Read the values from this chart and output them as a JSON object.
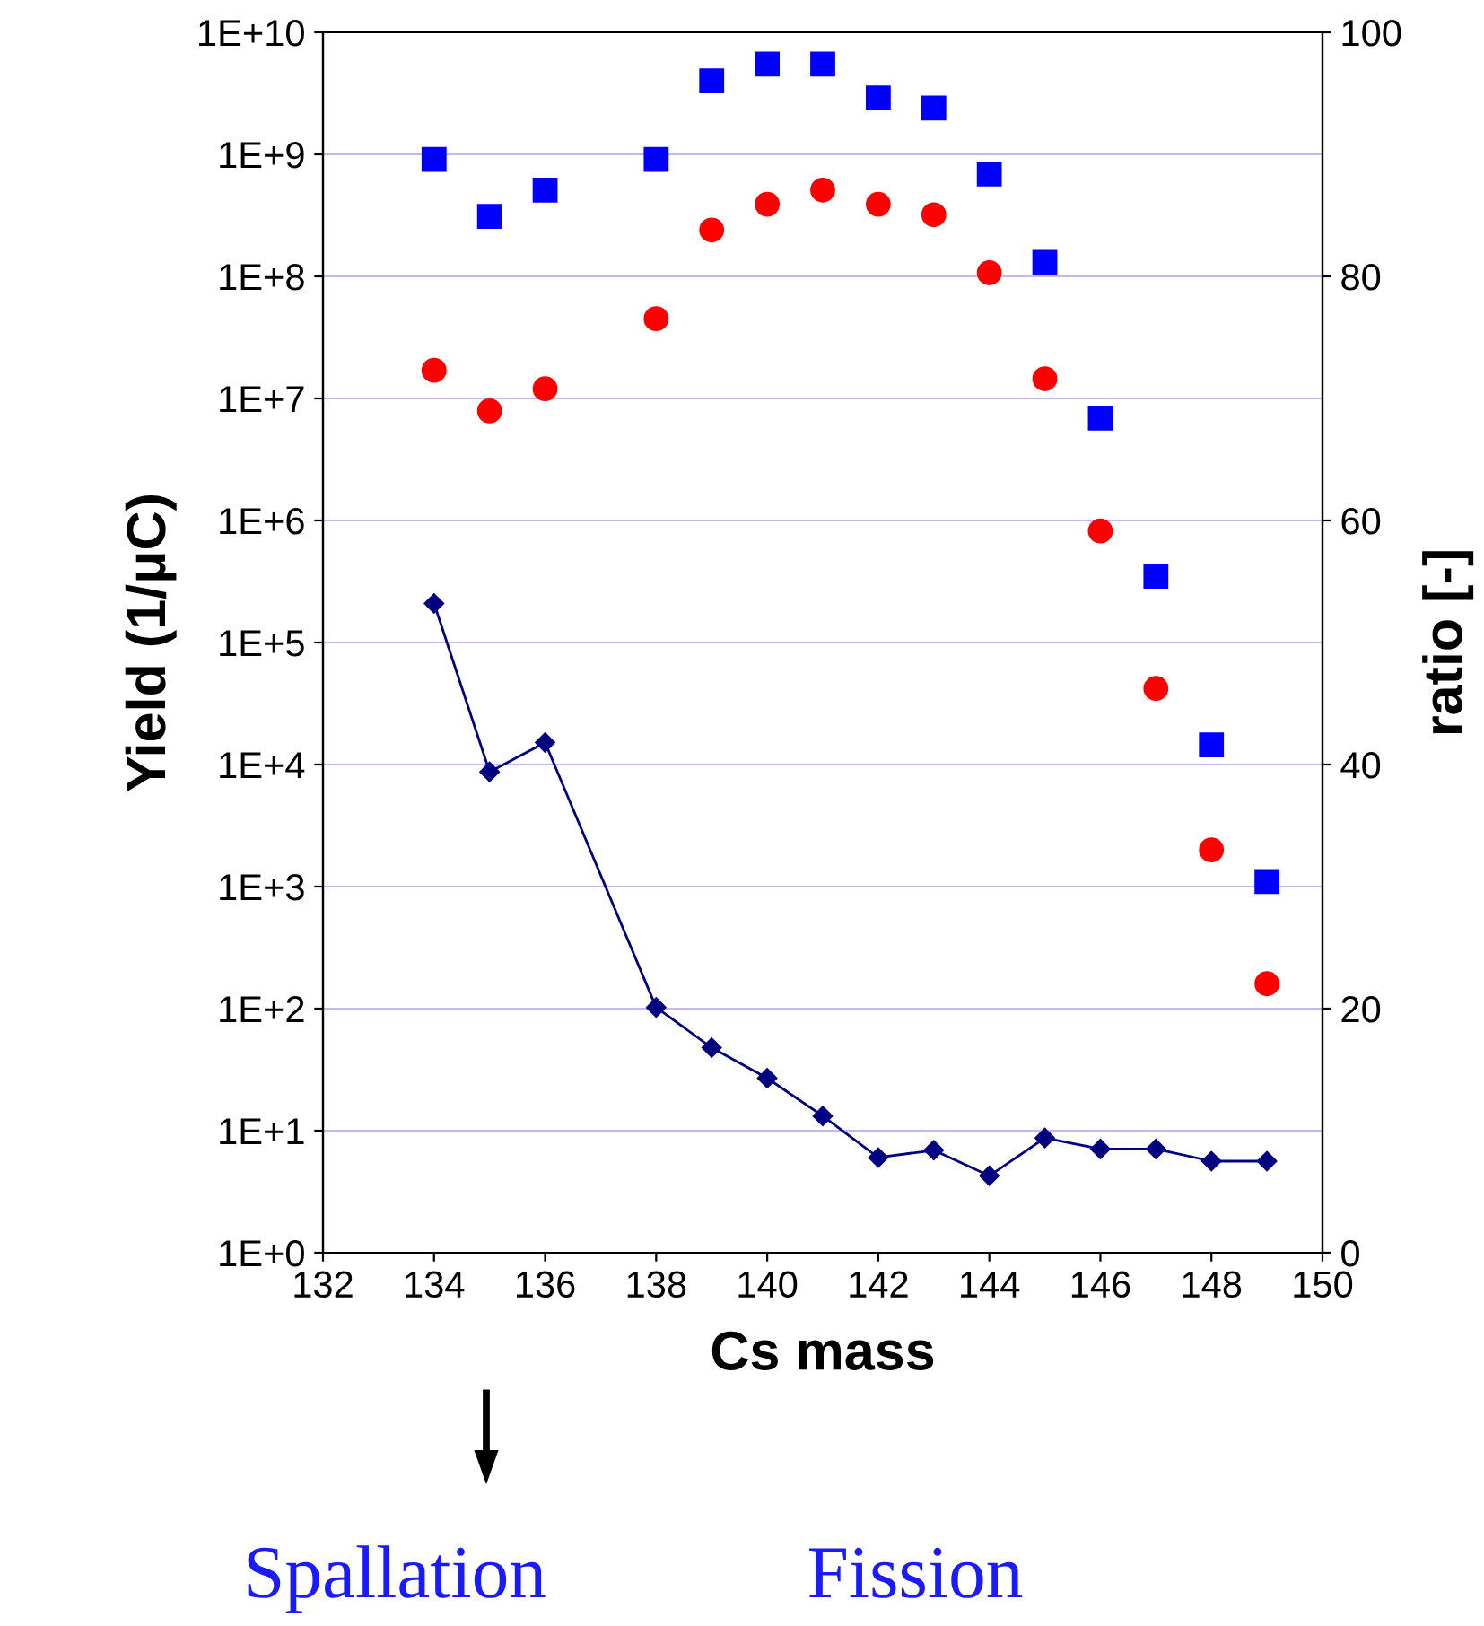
{
  "chart_data": {
    "type": "scatter",
    "xlabel": "Cs mass",
    "ylabel": "Yield (1/μC)",
    "y2label": "ratio [-]",
    "x": [
      134,
      135,
      136,
      138,
      139,
      140,
      141,
      142,
      143,
      144,
      145,
      146,
      147,
      148,
      149
    ],
    "series": [
      {
        "marker": "square",
        "color": "#0000ff",
        "values": [
          910000000.0,
          310000000.0,
          510000000.0,
          910000000.0,
          4000000000.0,
          5500000000.0,
          5500000000.0,
          2900000000.0,
          2400000000.0,
          690000000.0,
          130000000.0,
          6900000.0,
          350000.0,
          14500.0,
          1100.0
        ]
      },
      {
        "marker": "circle",
        "color": "#ff0000",
        "values": [
          17000000.0,
          7900000.0,
          12000000.0,
          45000000.0,
          240000000.0,
          390000000.0,
          510000000.0,
          390000000.0,
          320000000.0,
          107000000.0,
          14500000.0,
          820000.0,
          42000.0,
          2000.0,
          160
        ]
      },
      {
        "type": "line",
        "marker": "diamond",
        "axis": "y2",
        "color": "#000080",
        "values": [
          53.2,
          39.4,
          41.8,
          20.1,
          16.8,
          14.3,
          11.2,
          7.8,
          8.4,
          6.3,
          9.4,
          8.5,
          8.5,
          7.5,
          7.5
        ]
      }
    ],
    "log": "y",
    "grid": "y",
    "xlim": [
      132,
      150
    ],
    "xticks": [
      132,
      134,
      136,
      138,
      140,
      142,
      144,
      146,
      148,
      150
    ],
    "ylim": [
      1,
      10000000000.0
    ],
    "yticks": [
      {
        "value": 1,
        "label": "1E+0"
      },
      {
        "value": 10,
        "label": "1E+1"
      },
      {
        "value": 100,
        "label": "1E+2"
      },
      {
        "value": 1000,
        "label": "1E+3"
      },
      {
        "value": 10000,
        "label": "1E+4"
      },
      {
        "value": 100000,
        "label": "1E+5"
      },
      {
        "value": 1000000,
        "label": "1E+6"
      },
      {
        "value": 10000000,
        "label": "1E+7"
      },
      {
        "value": 100000000,
        "label": "1E+8"
      },
      {
        "value": 1000000000,
        "label": "1E+9"
      },
      {
        "value": 10000000000,
        "label": "1E+10"
      }
    ],
    "y2lim": [
      0,
      100
    ],
    "y2ticks": [
      0,
      20,
      40,
      60,
      80,
      100
    ],
    "annotations": [
      "Spallation",
      "Fission"
    ]
  }
}
